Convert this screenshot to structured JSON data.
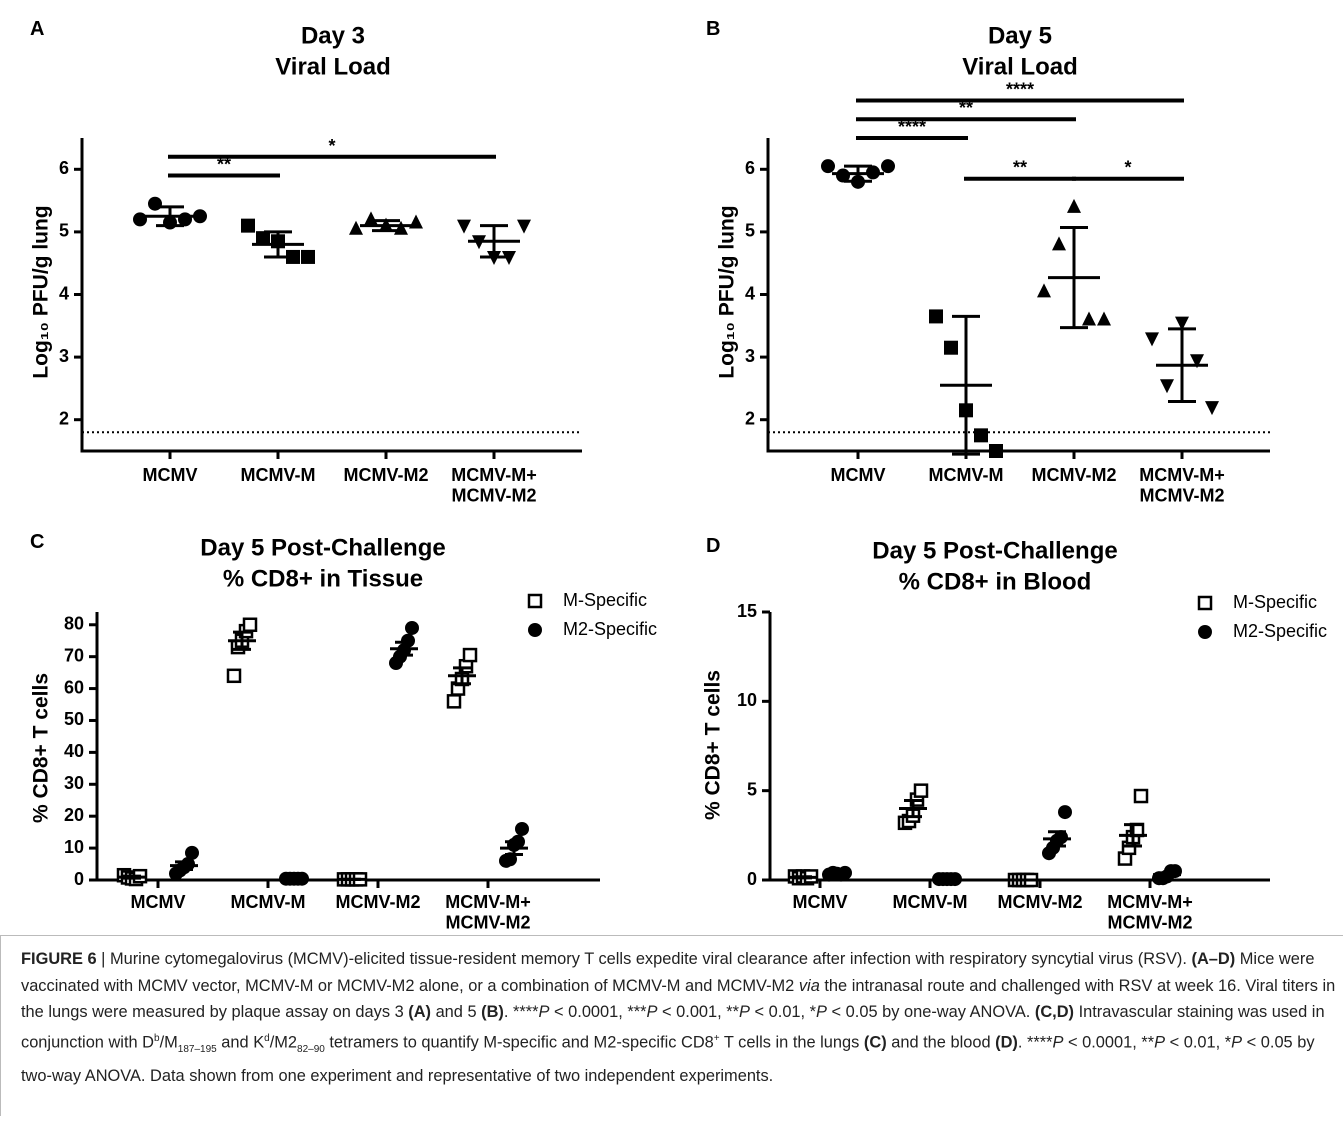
{
  "chart_data": [
    {
      "type": "dot",
      "panel": "A",
      "title": [
        "Day 3",
        "Viral Load"
      ],
      "ylabel": "Log₁₀ PFU/g lung",
      "categories": [
        "MCMV",
        "MCMV-M",
        "MCMV-M2",
        "MCMV-M+\nMCMV-M2"
      ],
      "ylim": [
        1.5,
        6.5
      ],
      "yticks": [
        2,
        3,
        4,
        5,
        6
      ],
      "reference_line": 1.8,
      "series": [
        {
          "color": "#000000",
          "markers": [
            "circle",
            "square",
            "triangle",
            "triangle-down"
          ],
          "values": [
            [
              5.2,
              5.45,
              5.15,
              5.2,
              5.25
            ],
            [
              5.1,
              4.9,
              4.85,
              4.6,
              4.6
            ],
            [
              5.05,
              5.2,
              5.1,
              5.05,
              5.15
            ],
            [
              5.1,
              4.85,
              4.6,
              4.6,
              5.1
            ]
          ],
          "mean": [
            5.25,
            4.8,
            5.1,
            4.85
          ],
          "error": [
            0.15,
            0.2,
            0.08,
            0.25
          ]
        }
      ],
      "comparisons": [
        {
          "from": 0,
          "to": 1,
          "label": "**"
        },
        {
          "from": 0,
          "to": 3,
          "label": "*"
        }
      ]
    },
    {
      "type": "dot",
      "panel": "B",
      "title": [
        "Day 5",
        "Viral Load"
      ],
      "ylabel": "Log₁₀ PFU/g lung",
      "categories": [
        "MCMV",
        "MCMV-M",
        "MCMV-M2",
        "MCMV-M+\nMCMV-M2"
      ],
      "ylim": [
        1.5,
        6.5
      ],
      "yticks": [
        2,
        3,
        4,
        5,
        6
      ],
      "reference_line": 1.8,
      "series": [
        {
          "color": "#000000",
          "markers": [
            "circle",
            "square",
            "triangle",
            "triangle-down"
          ],
          "values": [
            [
              6.05,
              5.9,
              5.8,
              5.95,
              6.05
            ],
            [
              3.65,
              3.15,
              2.15,
              1.75,
              1.5
            ],
            [
              4.05,
              4.8,
              5.4,
              3.6,
              3.6
            ],
            [
              3.3,
              2.55,
              3.55,
              2.95,
              2.2
            ]
          ],
          "mean": [
            5.93,
            2.55,
            4.27,
            2.87
          ],
          "error": [
            0.12,
            1.1,
            0.8,
            0.58
          ]
        }
      ],
      "comparisons": [
        {
          "from": 1,
          "to": 2,
          "label": "**"
        },
        {
          "from": 2,
          "to": 3,
          "label": "*"
        },
        {
          "from": 0,
          "to": 1,
          "label": "****"
        },
        {
          "from": 0,
          "to": 2,
          "label": "**"
        },
        {
          "from": 0,
          "to": 3,
          "label": "****"
        }
      ]
    },
    {
      "type": "dot",
      "panel": "C",
      "title": [
        "Day 5 Post-Challenge",
        "% CD8+ in Tissue"
      ],
      "ylabel": "% CD8+ T cells",
      "categories": [
        "MCMV",
        "MCMV-M",
        "MCMV-M2",
        "MCMV-M+\nMCMV-M2"
      ],
      "ylim": [
        0,
        84
      ],
      "yticks": [
        0,
        10,
        20,
        30,
        40,
        50,
        60,
        70,
        80
      ],
      "series": [
        {
          "name": "M-Specific",
          "color": "#000000",
          "marker": "open-square",
          "values": [
            [
              1.5,
              0.8,
              0.5,
              0.3,
              1.2
            ],
            [
              64,
              73,
              75,
              78,
              80
            ],
            [
              0.2,
              0.2,
              0.2,
              0.2,
              0.2
            ],
            [
              56,
              60,
              63,
              67,
              70.5
            ]
          ],
          "mean": [
            0.9,
            75,
            0.2,
            64
          ],
          "error": [
            0.3,
            2.7,
            0.05,
            2.5
          ]
        },
        {
          "name": "M2-Specific",
          "color": "#000000",
          "marker": "circle",
          "values": [
            [
              2,
              3,
              4,
              5,
              8.5
            ],
            [
              0.4,
              0.4,
              0.4,
              0.4,
              0.4
            ],
            [
              68,
              70,
              72,
              75,
              79
            ],
            [
              6,
              6.5,
              11,
              12,
              16
            ]
          ],
          "mean": [
            4.5,
            0.4,
            72.5,
            10
          ],
          "error": [
            1.2,
            0.05,
            2,
            2
          ]
        }
      ]
    },
    {
      "type": "dot",
      "panel": "D",
      "title": [
        "Day 5 Post-Challenge",
        "% CD8+ in Blood"
      ],
      "ylabel": "% CD8+ T cells",
      "categories": [
        "MCMV",
        "MCMV-M",
        "MCMV-M2",
        "MCMV-M+\nMCMV-M2"
      ],
      "ylim": [
        0,
        15
      ],
      "yticks": [
        0,
        5,
        10,
        15
      ],
      "series": [
        {
          "name": "M-Specific",
          "color": "#000000",
          "marker": "open-square",
          "values": [
            [
              0.2,
              0.1,
              0.2,
              0.1,
              0.2
            ],
            [
              3.2,
              3.3,
              3.6,
              4.5,
              5.0
            ],
            [
              0,
              0,
              0,
              0,
              0
            ],
            [
              1.2,
              1.8,
              2.4,
              2.8,
              4.7
            ]
          ],
          "mean": [
            0.15,
            4,
            0,
            2.5
          ],
          "error": [
            0.03,
            0.45,
            0,
            0.6
          ]
        },
        {
          "name": "M2-Specific",
          "color": "#000000",
          "marker": "circle",
          "values": [
            [
              0.3,
              0.4,
              0.35,
              0.3,
              0.4
            ],
            [
              0.05,
              0.05,
              0.05,
              0.05,
              0.05
            ],
            [
              1.5,
              1.8,
              2.2,
              2.4,
              3.8
            ],
            [
              0.1,
              0.1,
              0.2,
              0.5,
              0.5
            ]
          ],
          "mean": [
            0.35,
            0.05,
            2.3,
            0.3
          ],
          "error": [
            0.03,
            0,
            0.4,
            0.1
          ]
        }
      ]
    }
  ],
  "caption": {
    "runs": [
      {
        "text": "FIGURE 6",
        "style": "b"
      },
      {
        "text": " | Murine cytomegalovirus (MCMV)-elicited tissue-resident memory T cells expedite viral clearance after infection with respiratory syncytial virus (RSV). "
      },
      {
        "text": "(A–D)",
        "style": "b"
      },
      {
        "text": " Mice were vaccinated with MCMV vector, MCMV-M or MCMV-M2 alone, or a combination of MCMV-M and MCMV-M2 "
      },
      {
        "text": "via",
        "style": "i"
      },
      {
        "text": " the intranasal route and challenged with RSV at week 16. Viral titers in the lungs were measured by plaque assay on days 3 "
      },
      {
        "text": "(A)",
        "style": "b"
      },
      {
        "text": " and 5 "
      },
      {
        "text": "(B)",
        "style": "b"
      },
      {
        "text": ". ****"
      },
      {
        "text": "P",
        "style": "i"
      },
      {
        "text": " < 0.0001, ***"
      },
      {
        "text": "P",
        "style": "i"
      },
      {
        "text": " < 0.001, **"
      },
      {
        "text": "P",
        "style": "i"
      },
      {
        "text": " < 0.01, *"
      },
      {
        "text": "P",
        "style": "i"
      },
      {
        "text": " < 0.05 by one-way ANOVA. "
      },
      {
        "text": "(C,D)",
        "style": "b"
      },
      {
        "text": " Intravascular staining was used in conjunction with D"
      },
      {
        "text": "b",
        "style": "sup"
      },
      {
        "text": "/M"
      },
      {
        "text": "187–195",
        "style": "sub"
      },
      {
        "text": " and K"
      },
      {
        "text": "d",
        "style": "sup"
      },
      {
        "text": "/M2"
      },
      {
        "text": "82–90",
        "style": "sub"
      },
      {
        "text": " tetramers to quantify M-specific and M2-specific CD8"
      },
      {
        "text": "+",
        "style": "sup"
      },
      {
        "text": " T cells in the lungs "
      },
      {
        "text": "(C)",
        "style": "b"
      },
      {
        "text": " and the blood "
      },
      {
        "text": "(D)",
        "style": "b"
      },
      {
        "text": ". ****"
      },
      {
        "text": "P",
        "style": "i"
      },
      {
        "text": " < 0.0001, **"
      },
      {
        "text": "P",
        "style": "i"
      },
      {
        "text": " < 0.01, *"
      },
      {
        "text": "P",
        "style": "i"
      },
      {
        "text": " < 0.05 by two-way ANOVA. Data shown from one experiment and representative of two independent experiments."
      }
    ]
  }
}
